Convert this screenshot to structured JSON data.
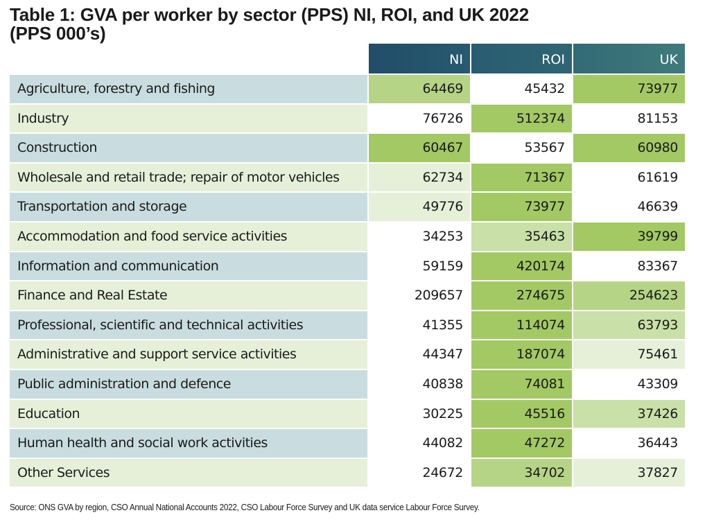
{
  "title": {
    "line1": "Table 1: GVA per worker by sector (PPS) NI, ROI, and UK 2022",
    "line2": "(PPS 000’s)"
  },
  "columns": [
    "NI",
    "ROI",
    "UK"
  ],
  "shades": {
    "strong": "#a3c964",
    "medium": "#b5d486",
    "light": "#c9e0a8",
    "pale": "#e6f0d9",
    "none": "#ffffff"
  },
  "rows": [
    {
      "label": "Agriculture, forestry and fishing",
      "values": [
        "64469",
        "45432",
        "73977"
      ],
      "shades": [
        "medium",
        "none",
        "strong"
      ]
    },
    {
      "label": "Industry",
      "values": [
        "76726",
        "512374",
        "81153"
      ],
      "shades": [
        "none",
        "strong",
        "none"
      ]
    },
    {
      "label": "Construction",
      "values": [
        "60467",
        "53567",
        "60980"
      ],
      "shades": [
        "strong",
        "none",
        "strong"
      ]
    },
    {
      "label": "Wholesale and retail trade; repair of motor vehicles",
      "values": [
        "62734",
        "71367",
        "61619"
      ],
      "shades": [
        "pale",
        "strong",
        "none"
      ]
    },
    {
      "label": "Transportation and storage",
      "values": [
        "49776",
        "73977",
        "46639"
      ],
      "shades": [
        "pale",
        "strong",
        "none"
      ]
    },
    {
      "label": "Accommodation and food service activities",
      "values": [
        "34253",
        "35463",
        "39799"
      ],
      "shades": [
        "none",
        "light",
        "strong"
      ]
    },
    {
      "label": "Information and communication",
      "values": [
        "59159",
        "420174",
        "83367"
      ],
      "shades": [
        "none",
        "strong",
        "none"
      ]
    },
    {
      "label": "Finance and Real Estate",
      "values": [
        "209657",
        "274675",
        "254623"
      ],
      "shades": [
        "none",
        "strong",
        "medium"
      ]
    },
    {
      "label": "Professional, scientific and technical activities",
      "values": [
        "41355",
        "114074",
        "63793"
      ],
      "shades": [
        "none",
        "strong",
        "light"
      ]
    },
    {
      "label": "Administrative and support service activities",
      "values": [
        "44347",
        "187074",
        "75461"
      ],
      "shades": [
        "none",
        "strong",
        "pale"
      ]
    },
    {
      "label": "Public administration and defence",
      "values": [
        "40838",
        "74081",
        "43309"
      ],
      "shades": [
        "none",
        "strong",
        "none"
      ]
    },
    {
      "label": "Education",
      "values": [
        "30225",
        "45516",
        "37426"
      ],
      "shades": [
        "none",
        "strong",
        "light"
      ]
    },
    {
      "label": "Human health and social work activities",
      "values": [
        "44082",
        "47272",
        "36443"
      ],
      "shades": [
        "none",
        "strong",
        "none"
      ]
    },
    {
      "label": "Other Services",
      "values": [
        "24672",
        "34702",
        "37827"
      ],
      "shades": [
        "none",
        "medium",
        "pale"
      ]
    }
  ],
  "source": "Source: ONS GVA by region, CSO Annual National Accounts 2022, CSO Labour Force Survey and UK data service Labour Force Survey."
}
